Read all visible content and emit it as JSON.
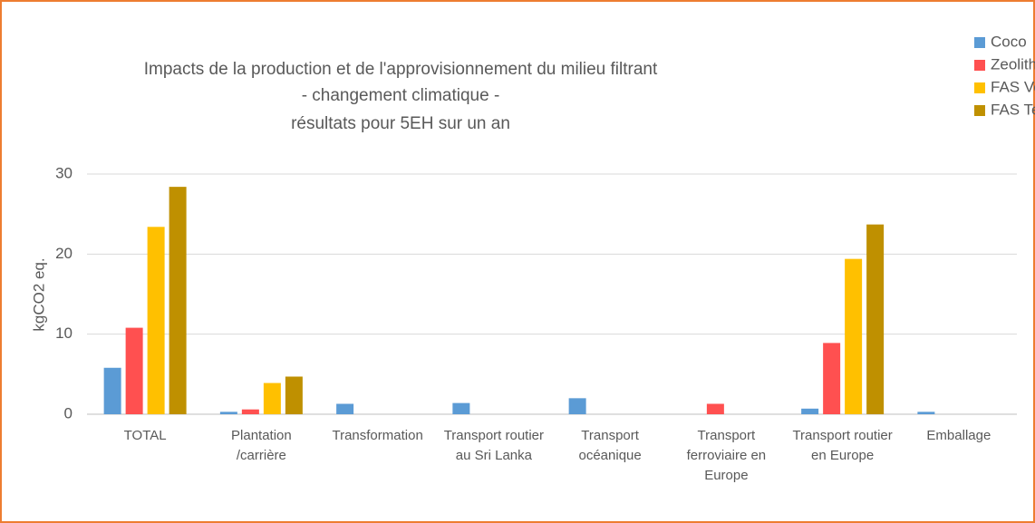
{
  "chart_data": {
    "type": "bar",
    "title": [
      "Impacts de la production et de l'approvisionnement du milieu filtrant",
      "- changement climatique -",
      "résultats pour 5EH sur un an"
    ],
    "y_label": "kgCO2 eq.",
    "categories": [
      "TOTAL",
      "Plantation /carrière",
      "Transformation",
      "Transport routier au Sri Lanka",
      "Transport océanique",
      "Transport ferroviaire en Europe",
      "Transport routier en Europe",
      "Emballage"
    ],
    "series": [
      {
        "name": "Coco",
        "color": "#5b9bd5",
        "values": [
          5.8,
          0.3,
          1.3,
          1.4,
          2.0,
          0,
          0.7,
          0.3
        ]
      },
      {
        "name": "Zeolithe",
        "color": "#ff5050",
        "values": [
          10.8,
          0.6,
          0,
          0,
          0,
          1.3,
          8.9,
          0
        ]
      },
      {
        "name": "FAS Vertical",
        "color": "#ffc000",
        "values": [
          23.4,
          3.9,
          0,
          0,
          0,
          0,
          19.4,
          0
        ]
      },
      {
        "name": "FAS Tertre",
        "color": "#bf9000",
        "values": [
          28.4,
          4.7,
          0,
          0,
          0,
          0,
          23.7,
          0
        ]
      }
    ],
    "ylim": [
      0,
      30
    ],
    "yticks": [
      0,
      10,
      20,
      30
    ],
    "grid": true,
    "legend": "top-right"
  }
}
